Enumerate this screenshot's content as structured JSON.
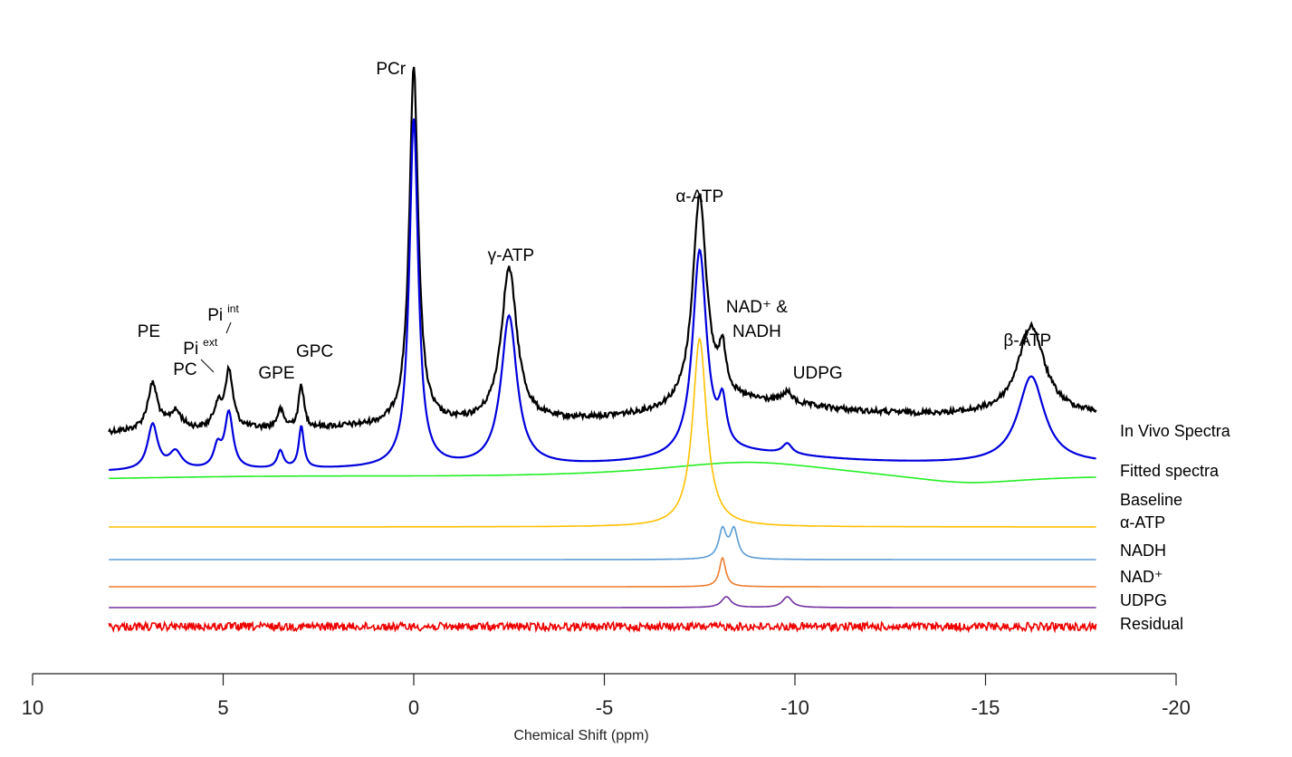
{
  "chart_data": {
    "type": "line",
    "xlabel": "Chemical Shift (ppm)",
    "xlim": [
      10,
      -20
    ],
    "x_reversed": true,
    "x_ticks": [
      "10",
      "5",
      "0",
      "-5",
      "-10",
      "-15",
      "-20"
    ],
    "x_tick_values": [
      10,
      5,
      0,
      -5,
      -10,
      -15,
      -20
    ],
    "grid": false,
    "legend_placement": "right, beside each trace",
    "series": [
      {
        "name": "In Vivo Spectra",
        "color": "#000000",
        "kind": "in-vivo"
      },
      {
        "name": "Fitted spectra",
        "color": "#0000dd",
        "kind": "fitted"
      },
      {
        "name": "Baseline",
        "color": "#22ee22",
        "kind": "baseline"
      },
      {
        "name": "α-ATP",
        "color": "#ffc000",
        "kind": "single",
        "peaks": [
          {
            "ppm": -7.5,
            "amp": 1.0,
            "w": 0.22
          }
        ]
      },
      {
        "name": "NADH",
        "color": "#5b9bd5",
        "kind": "single",
        "peaks": [
          {
            "ppm": -8.1,
            "amp": 1.0,
            "w": 0.12
          },
          {
            "ppm": -8.4,
            "amp": 1.0,
            "w": 0.12
          }
        ]
      },
      {
        "name": "NAD⁺",
        "color": "#ed7d31",
        "kind": "single",
        "peaks": [
          {
            "ppm": -8.1,
            "amp": 1.0,
            "w": 0.1
          }
        ]
      },
      {
        "name": "UDPG",
        "color": "#7030a0",
        "kind": "single",
        "peaks": [
          {
            "ppm": -8.2,
            "amp": 1.0,
            "w": 0.15
          },
          {
            "ppm": -9.8,
            "amp": 1.0,
            "w": 0.15
          }
        ]
      },
      {
        "name": "Residual",
        "color": "#ee0000",
        "kind": "residual"
      }
    ],
    "peaks": [
      {
        "name": "PE",
        "ppm": 6.85,
        "rel_height": 0.13,
        "width": 0.16
      },
      {
        "name": "PC",
        "ppm": 6.25,
        "rel_height": 0.05,
        "width": 0.2
      },
      {
        "name": "Pi ext",
        "ppm": 5.15,
        "rel_height": 0.06,
        "width": 0.12
      },
      {
        "name": "Pi int",
        "ppm": 4.85,
        "rel_height": 0.16,
        "width": 0.13
      },
      {
        "name": "GPE",
        "ppm": 3.5,
        "rel_height": 0.05,
        "width": 0.1
      },
      {
        "name": "GPC",
        "ppm": 2.95,
        "rel_height": 0.12,
        "width": 0.08
      },
      {
        "name": "PCr",
        "ppm": 0.0,
        "rel_height": 1.0,
        "width": 0.14
      },
      {
        "name": "γ-ATP",
        "ppm": -2.5,
        "rel_height": 0.43,
        "width": 0.25
      },
      {
        "name": "α-ATP",
        "ppm": -7.5,
        "rel_height": 0.59,
        "width": 0.22
      },
      {
        "name": "NAD⁺ & NADH",
        "ppm": -8.1,
        "rel_height": 0.12,
        "width": 0.12
      },
      {
        "name": "UDPG",
        "ppm": -9.8,
        "rel_height": 0.03,
        "width": 0.15
      },
      {
        "name": "β-ATP",
        "ppm": -16.2,
        "rel_height": 0.25,
        "width": 0.42
      }
    ],
    "annotations": [
      {
        "text": "PCr",
        "ppm": 0.6
      },
      {
        "text": "γ-ATP",
        "ppm": -2.55
      },
      {
        "text": "α-ATP",
        "ppm": -7.5
      },
      {
        "text": "NAD⁺ &",
        "ppm": -9.0
      },
      {
        "text": "NADH",
        "ppm": -9.0
      },
      {
        "text": "UDPG",
        "ppm": -10.6
      },
      {
        "text": "β-ATP",
        "ppm": -16.1
      },
      {
        "text": "PE",
        "ppm": 6.95
      },
      {
        "text": "PC",
        "ppm": 6.0
      },
      {
        "text": "Pi",
        "sup": "ext",
        "ppm": 5.6
      },
      {
        "text": "Pi",
        "sup": "int",
        "ppm": 5.0
      },
      {
        "text": "GPE",
        "ppm": 3.6
      },
      {
        "text": "GPC",
        "ppm": 2.6
      }
    ]
  }
}
